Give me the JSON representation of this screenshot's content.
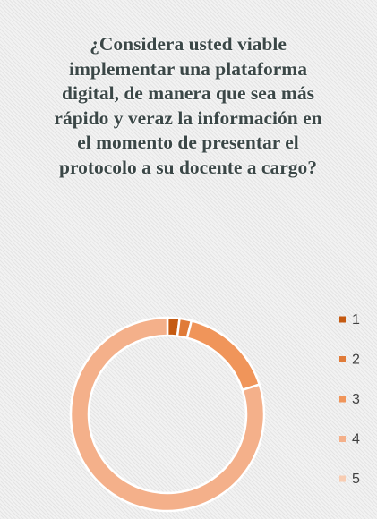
{
  "chart_data": {
    "type": "donut",
    "title": "¿Considera usted viable implementar una plataforma digital, de manera que sea más rápido y veraz la información en el momento de presentar el protocolo a su docente a cargo?",
    "categories": [
      "1",
      "2",
      "3",
      "4",
      "5"
    ],
    "values": [
      2,
      2,
      16,
      80,
      0
    ],
    "colors": [
      "#c55a11",
      "#e07b39",
      "#f0955a",
      "#f4b08a",
      "#f8cdb3"
    ],
    "legend": "right"
  }
}
